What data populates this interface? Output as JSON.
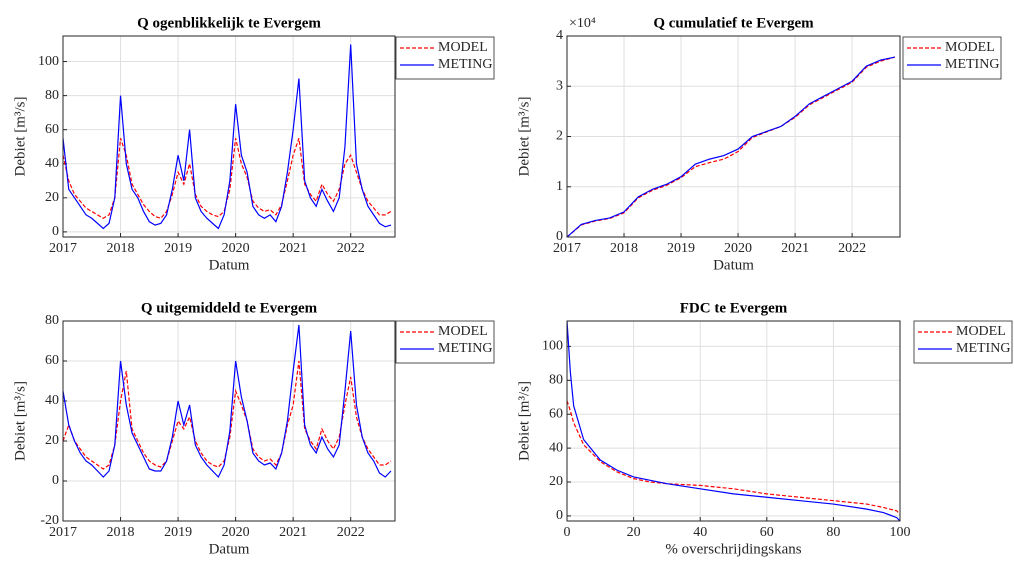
{
  "chart_data": [
    {
      "type": "line",
      "title": "Q ogenblikkelijk te Evergem",
      "xlabel": "Datum",
      "ylabel": "Debiet [m³/s]",
      "xlim": [
        2017,
        2022.77
      ],
      "xticks": [
        2017,
        2018,
        2019,
        2020,
        2021,
        2022
      ],
      "ylim": [
        -3,
        115
      ],
      "yticks": [
        0,
        20,
        40,
        60,
        80,
        100
      ],
      "grid": true,
      "legend": "outside-right-top",
      "x": [
        2017.0,
        2017.1,
        2017.2,
        2017.3,
        2017.4,
        2017.5,
        2017.6,
        2017.7,
        2017.8,
        2017.9,
        2018.0,
        2018.1,
        2018.2,
        2018.3,
        2018.4,
        2018.5,
        2018.6,
        2018.7,
        2018.8,
        2018.9,
        2019.0,
        2019.1,
        2019.2,
        2019.3,
        2019.4,
        2019.5,
        2019.6,
        2019.7,
        2019.8,
        2019.9,
        2020.0,
        2020.1,
        2020.2,
        2020.3,
        2020.4,
        2020.5,
        2020.6,
        2020.7,
        2020.8,
        2020.9,
        2021.0,
        2021.1,
        2021.2,
        2021.3,
        2021.4,
        2021.5,
        2021.6,
        2021.7,
        2021.8,
        2021.9,
        2022.0,
        2022.1,
        2022.2,
        2022.3,
        2022.4,
        2022.5,
        2022.6,
        2022.7
      ],
      "series": [
        {
          "name": "MODEL",
          "color": "#ff0000",
          "dash": true,
          "values": [
            45,
            30,
            22,
            18,
            14,
            12,
            10,
            8,
            10,
            20,
            55,
            45,
            28,
            22,
            16,
            12,
            9,
            8,
            12,
            22,
            35,
            28,
            40,
            22,
            15,
            12,
            10,
            9,
            12,
            25,
            55,
            40,
            32,
            18,
            14,
            12,
            13,
            10,
            16,
            30,
            45,
            55,
            28,
            22,
            18,
            28,
            22,
            18,
            25,
            40,
            45,
            35,
            25,
            18,
            14,
            10,
            10,
            12
          ]
        },
        {
          "name": "METING",
          "color": "#0000ff",
          "dash": false,
          "values": [
            55,
            25,
            20,
            15,
            10,
            8,
            5,
            2,
            5,
            20,
            80,
            40,
            25,
            20,
            12,
            6,
            4,
            5,
            10,
            25,
            45,
            30,
            60,
            20,
            12,
            8,
            5,
            2,
            10,
            30,
            75,
            45,
            35,
            15,
            10,
            8,
            10,
            6,
            15,
            35,
            60,
            90,
            30,
            20,
            15,
            25,
            18,
            12,
            20,
            50,
            110,
            40,
            25,
            15,
            10,
            5,
            3,
            4
          ]
        }
      ]
    },
    {
      "type": "line",
      "title": "Q cumulatief te Evergem",
      "xlabel": "Datum",
      "ylabel": "Debiet [m³/s]",
      "exponent": "×10⁴",
      "xlim": [
        2017,
        2022.84
      ],
      "xticks": [
        2017,
        2018,
        2019,
        2020,
        2021,
        2022
      ],
      "ylim": [
        0,
        40000
      ],
      "yticks": [
        0,
        {
          "value": 10000,
          "label": "1"
        },
        {
          "value": 20000,
          "label": "2"
        },
        {
          "value": 30000,
          "label": "3"
        },
        {
          "value": 40000,
          "label": "4"
        }
      ],
      "grid": true,
      "legend": "outside-right-top",
      "x": [
        2017.0,
        2017.25,
        2017.5,
        2017.75,
        2018.0,
        2018.25,
        2018.5,
        2018.75,
        2019.0,
        2019.25,
        2019.5,
        2019.75,
        2020.0,
        2020.25,
        2020.5,
        2020.75,
        2021.0,
        2021.25,
        2021.5,
        2021.75,
        2022.0,
        2022.25,
        2022.5,
        2022.75
      ],
      "series": [
        {
          "name": "MODEL",
          "color": "#ff0000",
          "dash": true,
          "values": [
            0,
            2400,
            3200,
            3700,
            4800,
            7800,
            9300,
            10300,
            11800,
            14000,
            14800,
            15500,
            17000,
            19800,
            20900,
            22000,
            23800,
            26300,
            27800,
            29300,
            30800,
            33800,
            35000,
            35800
          ]
        },
        {
          "name": "METING",
          "color": "#0000ff",
          "dash": false,
          "values": [
            0,
            2500,
            3300,
            3800,
            5000,
            8000,
            9500,
            10500,
            12000,
            14500,
            15500,
            16200,
            17500,
            20000,
            21000,
            22000,
            24000,
            26500,
            28000,
            29500,
            31000,
            34000,
            35200,
            35800
          ]
        }
      ]
    },
    {
      "type": "line",
      "title": "Q uitgemiddeld te Evergem",
      "xlabel": "Datum",
      "ylabel": "Debiet [m³/s]",
      "xlim": [
        2017,
        2022.77
      ],
      "xticks": [
        2017,
        2018,
        2019,
        2020,
        2021,
        2022
      ],
      "ylim": [
        -20,
        80
      ],
      "yticks": [
        -20,
        0,
        20,
        40,
        60,
        80
      ],
      "grid": true,
      "legend": "outside-right-top",
      "x": [
        2017.0,
        2017.1,
        2017.2,
        2017.3,
        2017.4,
        2017.5,
        2017.6,
        2017.7,
        2017.8,
        2017.9,
        2018.0,
        2018.1,
        2018.2,
        2018.3,
        2018.4,
        2018.5,
        2018.6,
        2018.7,
        2018.8,
        2018.9,
        2019.0,
        2019.1,
        2019.2,
        2019.3,
        2019.4,
        2019.5,
        2019.6,
        2019.7,
        2019.8,
        2019.9,
        2020.0,
        2020.1,
        2020.2,
        2020.3,
        2020.4,
        2020.5,
        2020.6,
        2020.7,
        2020.8,
        2020.9,
        2021.0,
        2021.1,
        2021.2,
        2021.3,
        2021.4,
        2021.5,
        2021.6,
        2021.7,
        2021.8,
        2021.9,
        2022.0,
        2022.1,
        2022.2,
        2022.3,
        2022.4,
        2022.5,
        2022.6,
        2022.7
      ],
      "series": [
        {
          "name": "MODEL",
          "color": "#ff0000",
          "dash": true,
          "values": [
            20,
            28,
            20,
            16,
            12,
            10,
            8,
            6,
            8,
            18,
            40,
            55,
            26,
            20,
            14,
            10,
            8,
            7,
            10,
            20,
            30,
            26,
            32,
            20,
            14,
            10,
            8,
            7,
            10,
            22,
            45,
            38,
            30,
            16,
            12,
            10,
            11,
            8,
            14,
            28,
            38,
            60,
            26,
            20,
            16,
            26,
            20,
            16,
            22,
            38,
            52,
            32,
            22,
            16,
            12,
            8,
            8,
            10
          ]
        },
        {
          "name": "METING",
          "color": "#0000ff",
          "dash": false,
          "values": [
            45,
            28,
            20,
            14,
            10,
            8,
            5,
            2,
            5,
            18,
            60,
            38,
            24,
            18,
            12,
            6,
            5,
            5,
            10,
            22,
            40,
            28,
            38,
            18,
            12,
            8,
            5,
            2,
            8,
            25,
            60,
            42,
            30,
            14,
            10,
            8,
            9,
            6,
            14,
            30,
            55,
            78,
            28,
            18,
            14,
            22,
            16,
            12,
            18,
            45,
            75,
            38,
            22,
            14,
            10,
            4,
            2,
            5
          ]
        }
      ]
    },
    {
      "type": "line",
      "title": "FDC te Evergem",
      "xlabel": "% overschrijdingskans",
      "ylabel": "Debiet [m³/s]",
      "xlim": [
        0,
        100
      ],
      "xticks": [
        0,
        20,
        40,
        60,
        80,
        100
      ],
      "ylim": [
        -3,
        115
      ],
      "yticks": [
        0,
        20,
        40,
        60,
        80,
        100
      ],
      "grid": true,
      "legend": "outside-right-top",
      "x": [
        0,
        1,
        2,
        5,
        10,
        15,
        20,
        25,
        30,
        40,
        50,
        60,
        70,
        80,
        90,
        95,
        99,
        100
      ],
      "series": [
        {
          "name": "MODEL",
          "color": "#ff0000",
          "dash": true,
          "values": [
            68,
            62,
            55,
            42,
            32,
            26,
            22,
            20,
            19,
            18,
            16,
            13,
            11,
            9,
            7,
            5,
            3,
            1
          ]
        },
        {
          "name": "METING",
          "color": "#0000ff",
          "dash": false,
          "values": [
            115,
            85,
            65,
            45,
            33,
            27,
            23,
            21,
            19,
            16,
            13,
            11,
            9,
            7,
            4,
            2,
            -1,
            -3
          ]
        }
      ]
    }
  ]
}
